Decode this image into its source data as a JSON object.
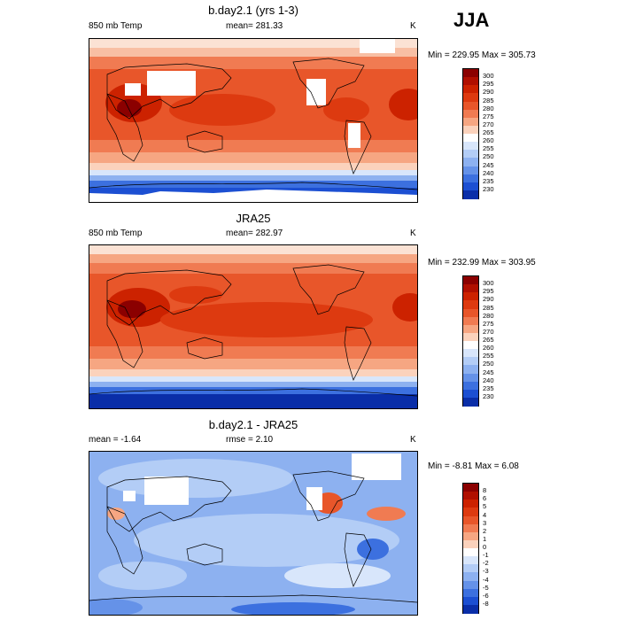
{
  "season": "JJA",
  "panels": [
    {
      "title": "b.day2.1 (yrs 1-3)",
      "left_label": "850 mb Temp",
      "center_label": "mean= 281.33",
      "units": "K",
      "minmax": "Min = 229.95 Max = 305.73",
      "colorbar": {
        "labels": [
          "300",
          "295",
          "290",
          "285",
          "280",
          "275",
          "270",
          "265",
          "260",
          "255",
          "250",
          "245",
          "240",
          "235",
          "230"
        ],
        "colors": [
          "#8b0000",
          "#b00f00",
          "#cc2200",
          "#dd3a10",
          "#e8562a",
          "#f07b52",
          "#f6a682",
          "#fbd2bc",
          "#ffffff",
          "#d8e6fb",
          "#b3cdf6",
          "#8db1f0",
          "#6592e8",
          "#3c70df",
          "#1c4fd2",
          "#0a2ea8"
        ]
      }
    },
    {
      "title": "JRA25",
      "left_label": "850 mb Temp",
      "center_label": "mean= 282.97",
      "units": "K",
      "minmax": "Min = 232.99 Max = 303.95",
      "colorbar": {
        "labels": [
          "300",
          "295",
          "290",
          "285",
          "280",
          "275",
          "270",
          "265",
          "260",
          "255",
          "250",
          "245",
          "240",
          "235",
          "230"
        ],
        "colors": [
          "#8b0000",
          "#b00f00",
          "#cc2200",
          "#dd3a10",
          "#e8562a",
          "#f07b52",
          "#f6a682",
          "#fbd2bc",
          "#ffffff",
          "#d8e6fb",
          "#b3cdf6",
          "#8db1f0",
          "#6592e8",
          "#3c70df",
          "#1c4fd2",
          "#0a2ea8"
        ]
      }
    },
    {
      "title": "b.day2.1 - JRA25",
      "left_label": "mean =  -1.64",
      "center_label": "rmse =   2.10",
      "units": "K",
      "minmax": "Min =  -8.81 Max =   6.08",
      "colorbar": {
        "labels": [
          "8",
          "6",
          "5",
          "4",
          "3",
          "2",
          "1",
          "0",
          "-1",
          "-2",
          "-3",
          "-4",
          "-5",
          "-6",
          "-8"
        ],
        "colors": [
          "#8b0000",
          "#b00f00",
          "#cc2200",
          "#dd3a10",
          "#e8562a",
          "#f07b52",
          "#f6a682",
          "#fbd2bc",
          "#ffffff",
          "#d8e6fb",
          "#b3cdf6",
          "#8db1f0",
          "#6592e8",
          "#3c70df",
          "#1c4fd2",
          "#0a2ea8"
        ]
      }
    }
  ]
}
